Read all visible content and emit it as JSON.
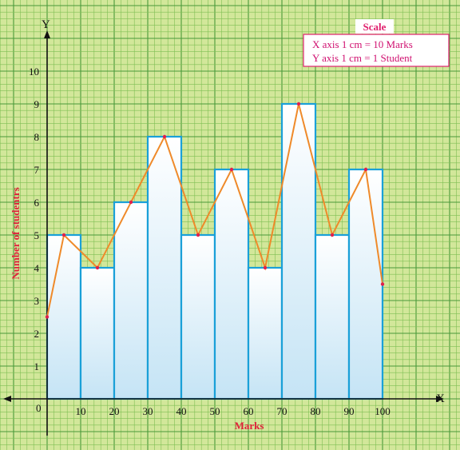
{
  "chart_data": {
    "type": "bar",
    "bins": [
      {
        "start": 0,
        "end": 10,
        "value": 5
      },
      {
        "start": 10,
        "end": 20,
        "value": 4
      },
      {
        "start": 20,
        "end": 30,
        "value": 6
      },
      {
        "start": 30,
        "end": 40,
        "value": 8
      },
      {
        "start": 40,
        "end": 50,
        "value": 5
      },
      {
        "start": 50,
        "end": 60,
        "value": 7
      },
      {
        "start": 60,
        "end": 70,
        "value": 4
      },
      {
        "start": 70,
        "end": 80,
        "value": 9
      },
      {
        "start": 80,
        "end": 90,
        "value": 5
      },
      {
        "start": 90,
        "end": 100,
        "value": 7
      }
    ],
    "frequency_polygon": {
      "x": [
        0,
        5,
        15,
        25,
        35,
        45,
        55,
        65,
        75,
        85,
        95,
        100
      ],
      "y": [
        2.5,
        5,
        4,
        6,
        8,
        5,
        7,
        4,
        9,
        5,
        7,
        3.5
      ]
    },
    "x_ticks": [
      "10",
      "20",
      "30",
      "40",
      "50",
      "60",
      "70",
      "80",
      "90",
      "100"
    ],
    "y_ticks": [
      "1",
      "2",
      "3",
      "4",
      "5",
      "6",
      "7",
      "8",
      "9",
      "10"
    ],
    "origin_label": "0",
    "x_axis_letter": "X",
    "y_axis_letter": "Y",
    "xlabel": "Marks",
    "ylabel": "Number of studentrs",
    "xlim": [
      0,
      100
    ],
    "ylim": [
      0,
      10
    ],
    "grid": true,
    "scale": {
      "title": "Scale",
      "x_line": "X axis 1 cm = 10 Marks",
      "y_line": "Y axis 1 cm =   1 Student"
    },
    "colors": {
      "background": "#d2e79a",
      "grid_minor": "#7fbf54",
      "grid_major": "#4a9a3a",
      "bar_stroke": "#1aa0d8",
      "bar_fill_top": "#ffffff",
      "bar_fill_bottom": "#c5e4f5",
      "polygon": "#ef8a2a",
      "polygon_point": "#e0204c",
      "axis": "#111111",
      "scale_border": "#e0206e"
    }
  }
}
